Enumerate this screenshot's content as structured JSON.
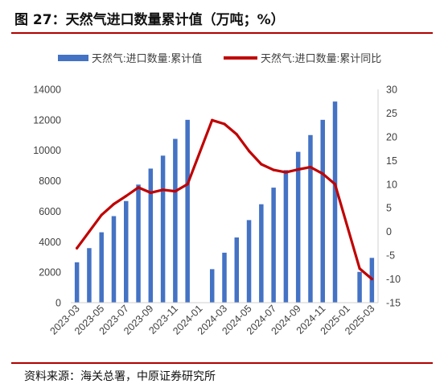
{
  "figure": {
    "title": "图 27：天然气进口数量累计值（万吨；%）",
    "source_label": "资料来源：",
    "source_text": "海关总署，中原证券研究所"
  },
  "colors": {
    "bar": "#4472c4",
    "line": "#c00000",
    "rule": "#b00000",
    "axis": "#d0d0d0"
  },
  "chart_data": {
    "type": "bar",
    "categories": [
      "2023-03",
      "2023-04",
      "2023-05",
      "2023-06",
      "2023-07",
      "2023-08",
      "2023-09",
      "2023-10",
      "2023-11",
      "2023-12",
      "2024-01",
      "2024-02",
      "2024-03",
      "2024-04",
      "2024-05",
      "2024-06",
      "2024-07",
      "2024-08",
      "2024-09",
      "2024-10",
      "2024-11",
      "2024-12",
      "2025-01",
      "2025-02",
      "2025-03"
    ],
    "xtick_labels": [
      "2023-03",
      "2023-05",
      "2023-07",
      "2023-09",
      "2023-11",
      "2024-01",
      "2024-03",
      "2024-05",
      "2024-07",
      "2024-09",
      "2024-11",
      "2025-01",
      "2025-03"
    ],
    "series": [
      {
        "name": "天然气:进口数量:累计值",
        "type": "bar",
        "axis": "left",
        "values": [
          2650,
          3580,
          4620,
          5680,
          6670,
          7750,
          8800,
          9650,
          10750,
          12000,
          null,
          2200,
          3280,
          4280,
          5420,
          6460,
          7550,
          8700,
          9900,
          11000,
          12000,
          13200,
          null,
          2020,
          2940
        ]
      },
      {
        "name": "天然气:进口数量:累计同比",
        "type": "line",
        "axis": "right",
        "values": [
          -3.5,
          0,
          3.5,
          5.8,
          7.5,
          9.3,
          8.2,
          8.8,
          8.5,
          10,
          null,
          23.5,
          22.7,
          20.5,
          17,
          14.2,
          13,
          12.5,
          13.1,
          13.6,
          12.2,
          10,
          null,
          -7.8,
          -10
        ]
      }
    ],
    "y_left": {
      "min": 0,
      "max": 14000,
      "ticks": [
        0,
        2000,
        4000,
        6000,
        8000,
        10000,
        12000,
        14000
      ]
    },
    "y_right": {
      "min": -15,
      "max": 30,
      "ticks": [
        -15,
        -10,
        -5,
        0,
        5,
        10,
        15,
        20,
        25,
        30
      ]
    },
    "grid": false,
    "legend_position": "top"
  }
}
